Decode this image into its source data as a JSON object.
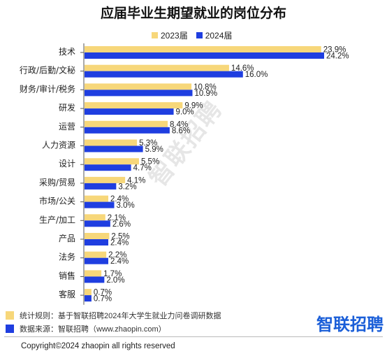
{
  "colors": {
    "s2023": "#f7d77a",
    "s2024": "#1f3ee0"
  },
  "chart_data": {
    "type": "bar",
    "orientation": "horizontal",
    "title": "应届毕业生期望就业的岗位分布",
    "categories": [
      "技术",
      "行政/后勤/文秘",
      "财务/审计/税务",
      "研发",
      "运营",
      "人力资源",
      "设计",
      "采购/贸易",
      "市场/公关",
      "生产/加工",
      "产品",
      "法务",
      "销售",
      "客服"
    ],
    "series": [
      {
        "name": "2023届",
        "values": [
          23.9,
          14.6,
          10.8,
          9.9,
          8.4,
          5.3,
          5.5,
          4.1,
          2.4,
          2.1,
          2.5,
          2.2,
          1.7,
          0.7
        ]
      },
      {
        "name": "2024届",
        "values": [
          24.2,
          16.0,
          10.9,
          9.0,
          8.6,
          5.9,
          4.7,
          3.2,
          3.0,
          2.6,
          2.4,
          2.4,
          2.0,
          0.7
        ]
      }
    ],
    "value_suffix": "%",
    "legend_position": "top-center",
    "grid": false
  },
  "watermark": "智联招聘",
  "footnotes": [
    {
      "text": "统计规则：基于智联招聘2024年大学生就业力问卷调研数据",
      "color": "#f7d77a"
    },
    {
      "text": "数据来源：智联招聘（www.zhaopin.com）",
      "color": "#1f3ee0"
    }
  ],
  "logo": "智联招聘",
  "copyright": "Copyright©2024 zhaopin all rights reserved"
}
